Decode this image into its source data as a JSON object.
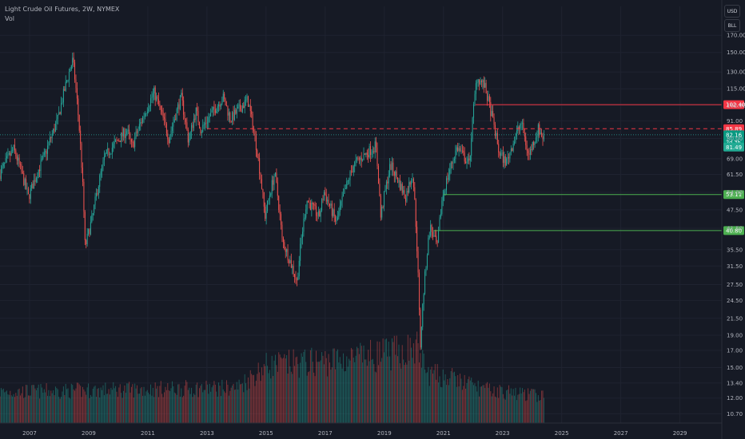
{
  "legend": {
    "symbol_title": "Light Crude Oil Futures, 2W, NYMEX",
    "indicator": "Vol"
  },
  "toolbar": {
    "currency_label": "USD",
    "unit_label": "BLL"
  },
  "colors": {
    "background": "#161a25",
    "up": "#26a69a",
    "down": "#ef5350",
    "resistance": "#f23645",
    "support": "#4caf50",
    "grid": "#1f2330",
    "text": "#b2b5be"
  },
  "chart_data": {
    "type": "candlestick",
    "y_scale": "log",
    "y_range": [
      10.0,
      210.0
    ],
    "x_range": [
      "2006-01",
      "2030-06"
    ],
    "y_ticks": [
      "170.00",
      "150.00",
      "130.00",
      "115.00",
      "102.00",
      "91.00",
      "80.00",
      "69.00",
      "61.50",
      "54.00",
      "47.50",
      "41.50",
      "35.50",
      "31.50",
      "27.50",
      "24.50",
      "21.50",
      "19.00",
      "17.00",
      "15.00",
      "13.40",
      "12.00",
      "10.70"
    ],
    "x_ticks": [
      "2007",
      "2009",
      "2011",
      "2013",
      "2015",
      "2017",
      "2019",
      "2021",
      "2023",
      "2025",
      "2027",
      "2029"
    ],
    "price_path": [
      [
        "2006-01",
        61
      ],
      [
        "2006-07",
        74
      ],
      [
        "2007-01",
        52
      ],
      [
        "2007-08",
        72
      ],
      [
        "2008-01",
        92
      ],
      [
        "2008-07",
        142
      ],
      [
        "2008-12",
        36
      ],
      [
        "2009-03",
        45
      ],
      [
        "2009-08",
        70
      ],
      [
        "2010-05",
        85
      ],
      [
        "2010-07",
        75
      ],
      [
        "2011-04",
        112
      ],
      [
        "2011-10",
        80
      ],
      [
        "2012-03",
        108
      ],
      [
        "2012-06",
        78
      ],
      [
        "2012-09",
        98
      ],
      [
        "2012-11",
        85
      ],
      [
        "2013-08",
        108
      ],
      [
        "2013-11",
        92
      ],
      [
        "2014-06",
        106
      ],
      [
        "2015-01",
        45
      ],
      [
        "2015-05",
        62
      ],
      [
        "2015-08",
        38
      ],
      [
        "2016-02",
        28
      ],
      [
        "2016-06",
        51
      ],
      [
        "2016-11",
        45
      ],
      [
        "2017-01",
        54
      ],
      [
        "2017-06",
        43
      ],
      [
        "2018-01",
        66
      ],
      [
        "2018-10",
        76
      ],
      [
        "2018-12",
        45
      ],
      [
        "2019-04",
        66
      ],
      [
        "2019-10",
        52
      ],
      [
        "2020-01",
        62
      ],
      [
        "2020-04",
        17
      ],
      [
        "2020-08",
        42
      ],
      [
        "2020-11",
        36
      ],
      [
        "2021-01",
        52
      ],
      [
        "2021-07",
        75
      ],
      [
        "2021-12",
        66
      ],
      [
        "2022-03",
        125
      ],
      [
        "2022-06",
        118
      ],
      [
        "2022-12",
        72
      ],
      [
        "2023-03",
        67
      ],
      [
        "2023-09",
        90
      ],
      [
        "2023-12",
        70
      ],
      [
        "2024-04",
        86
      ],
      [
        "2024-06",
        80
      ]
    ],
    "volume_profile": [
      [
        "2006-01",
        0.3
      ],
      [
        "2014-01",
        0.34
      ],
      [
        "2015-01",
        0.55
      ],
      [
        "2018-01",
        0.62
      ],
      [
        "2019-06",
        0.68
      ],
      [
        "2020-03",
        0.72
      ],
      [
        "2020-06",
        0.48
      ],
      [
        "2021-06",
        0.42
      ],
      [
        "2022-06",
        0.32
      ],
      [
        "2024-06",
        0.26
      ]
    ],
    "levels": [
      {
        "value": 102.4,
        "label": "102.40",
        "style": "solid",
        "color": "#f23645",
        "from": "2022-02"
      },
      {
        "value": 85.89,
        "label": "85.89",
        "style": "dashed",
        "color": "#f23645",
        "from": "2013-01"
      },
      {
        "value": 53.11,
        "label": "53.11",
        "style": "solid",
        "color": "#4caf50",
        "from": "2021-01"
      },
      {
        "value": 40.8,
        "label": "40.80",
        "style": "solid",
        "color": "#4caf50",
        "from": "2020-09"
      }
    ],
    "last_price": {
      "value": 82.16,
      "label": "82.16",
      "countdown": "2d 3h"
    },
    "low_marker": {
      "value": 81.49,
      "label": "81.49"
    }
  }
}
